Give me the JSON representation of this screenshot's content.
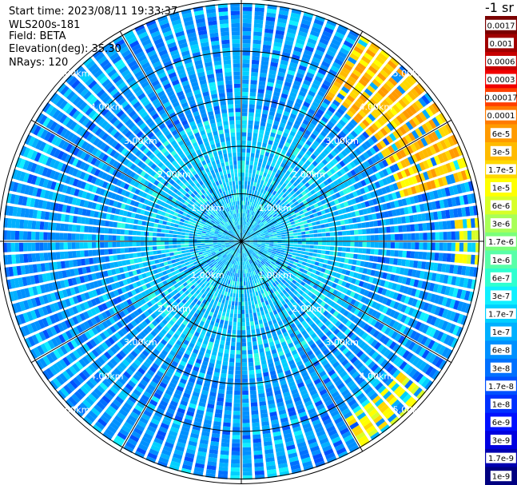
{
  "info": {
    "start_time": "Start time: 2023/08/11 19:33:37",
    "instrument": "WLS200s-181",
    "field": "Field: BETA",
    "elevation": "Elevation(deg): 35.30",
    "nrays": "NRays: 120"
  },
  "colorbar": {
    "title": "-1 sr",
    "labels": [
      "0.0017",
      "0.001",
      "0.0006",
      "0.0003",
      "0.00017",
      "0.0001",
      "6e-5",
      "3e-5",
      "1.7e-5",
      "1e-5",
      "6e-6",
      "3e-6",
      "1.7e-6",
      "1e-6",
      "6e-7",
      "3e-7",
      "1.7e-7",
      "1e-7",
      "6e-8",
      "3e-8",
      "1.7e-8",
      "1e-8",
      "6e-9",
      "3e-9",
      "1.7e-9",
      "1e-9"
    ],
    "colors": [
      "#7a0000",
      "#a00000",
      "#c80000",
      "#f00000",
      "#ff4000",
      "#ff7a00",
      "#ff9a00",
      "#ffba00",
      "#ffd800",
      "#ffff00",
      "#d8ff28",
      "#a8ff58",
      "#7aff7a",
      "#58ffa8",
      "#30ffd0",
      "#10f0ff",
      "#00d0ff",
      "#00b0ff",
      "#0090ff",
      "#0070ff",
      "#0050ff",
      "#0030ff",
      "#0010ff",
      "#0000e0",
      "#0000b0",
      "#000080"
    ]
  },
  "chart_data": {
    "type": "heatmap",
    "projection": "polar (PPI scan)",
    "rays": 120,
    "range_rings_km": [
      1,
      2,
      3,
      4,
      5
    ],
    "ring_labels": [
      "1.00km",
      "2.00km",
      "3.00km",
      "4.00km",
      "5.00km"
    ],
    "max_range_km": 5.1,
    "field": "BETA",
    "elevation_deg": 35.3,
    "colorbar_range": [
      1e-09,
      0.0017
    ],
    "colorbar_scale": "log",
    "dominant_values": "mostly 1e-8 to 3e-7",
    "high_value_regions": [
      {
        "azimuth_deg_from_north": [
          30,
          75
        ],
        "range_km": [
          3.5,
          5.0
        ],
        "value": "1e-5 to 1e-4"
      },
      {
        "azimuth_deg_from_north": [
          85,
          95
        ],
        "range_km": [
          4.5,
          5.0
        ],
        "value": "1e-6 to 1e-5"
      },
      {
        "azimuth_deg_from_north": [
          130,
          150
        ],
        "range_km": [
          4.3,
          5.0
        ],
        "value": "3e-6 to 1e-5"
      }
    ]
  }
}
